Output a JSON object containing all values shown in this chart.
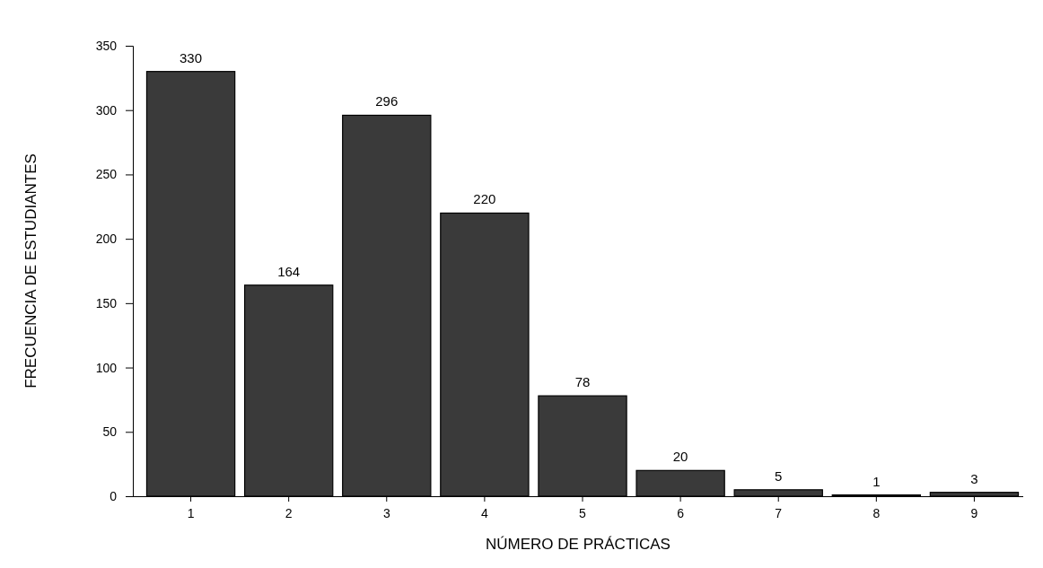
{
  "chart_data": {
    "type": "bar",
    "xlabel": "NÚMERO DE PRÁCTICAS",
    "ylabel": "FRECUENCIA DE ESTUDIANTES",
    "categories": [
      "1",
      "2",
      "3",
      "4",
      "5",
      "6",
      "7",
      "8",
      "9"
    ],
    "values": [
      330,
      164,
      296,
      220,
      78,
      20,
      5,
      1,
      3
    ],
    "color": "#3a3a3a",
    "ylim": [
      0,
      350
    ],
    "yticks": [
      0,
      50,
      100,
      150,
      200,
      250,
      300,
      350
    ],
    "data_labels": true,
    "grid": false
  }
}
